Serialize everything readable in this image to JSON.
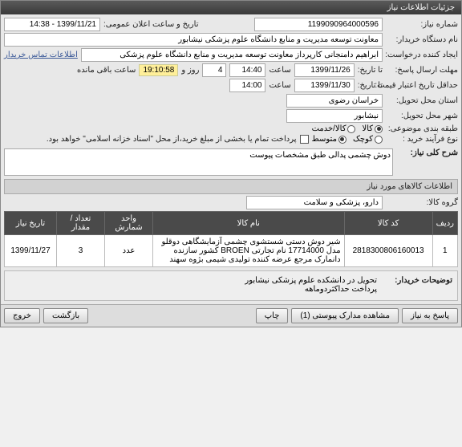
{
  "header": {
    "title": "جزئیات اطلاعات نیاز"
  },
  "fields": {
    "need_no_label": "شماره نیاز:",
    "need_no": "1199090964000596",
    "announce_label": "تاریخ و ساعت اعلان عمومی:",
    "announce": "1399/11/21 - 14:38",
    "buyer_org_label": "نام دستگاه خریدار:",
    "buyer_org": "معاونت توسعه مدیریت و منابع دانشگاه علوم پزشکی نیشابور",
    "creator_label": "ایجاد کننده درخواست:",
    "creator": "ابراهیم دامنجانی   کارپرداز معاونت توسعه مدیریت و منابع دانشگاه علوم پزشکی",
    "contact_link": "اطلاعات تماس خریدار",
    "deadline_label": "مهلت ارسال پاسخ:",
    "deadline_to": "تا تاریخ:",
    "deadline_date": "1399/11/26",
    "deadline_time_label": "ساعت",
    "deadline_time": "14:40",
    "remain_days": "4",
    "remain_days_label": "روز و",
    "remain_time": "19:10:58",
    "remain_suffix": "ساعت باقی مانده",
    "valid_label": "حداقل تاریخ اعتبار قیمت:",
    "valid_to": "تا تاریخ:",
    "valid_date": "1399/11/30",
    "valid_time_label": "ساعت",
    "valid_time": "14:00",
    "province_label": "استان محل تحویل:",
    "province": "خراسان رضوی",
    "city_label": "شهر محل تحویل:",
    "city": "نیشابور",
    "category_label": "طبقه بندی موضوعی:",
    "cat_goods": "کالا",
    "cat_service": "کالا/خدمت",
    "process_label": "نوع فرآیند خرید :",
    "proc_small": "کوچک",
    "proc_medium": "متوسط",
    "payment_note": "پرداخت تمام یا بخشی از مبلغ خرید،از محل \"اسناد خزانه اسلامی\" خواهد بود.",
    "desc_label": "شرح کلی نیاز:",
    "desc_value": "دوش چشمی پدالی طبق مشخصات پیوست"
  },
  "items_section": {
    "title": "اطلاعات کالاهای مورد نیاز",
    "group_label": "گروه کالا:",
    "group_value": "دارو، پزشکی و سلامت",
    "columns": {
      "row": "ردیف",
      "code": "کد کالا",
      "name": "نام کالا",
      "unit": "واحد شمارش",
      "qty": "تعداد / مقدار",
      "date": "تاریخ نیاز"
    },
    "rows": [
      {
        "row": "1",
        "code": "2818300806160013",
        "name": "شیر دوش دستی شستشوی چشمی آزمایشگاهی دوقلو مدل 17714000 نام تجارتی BROEN کشور سازنده دانمارک مرجع عرضه کننده تولیدی شیمی بژوه سهند",
        "unit": "عدد",
        "qty": "3",
        "date": "1399/11/27"
      }
    ]
  },
  "buyer_notes": {
    "label": "توضیحات خریدار:",
    "text": "تحویل در دانشکده علوم پزشکی نیشابور\nپرداخت حداکثردوماهه"
  },
  "buttons": {
    "reply": "پاسخ به نیاز",
    "attachments": "مشاهده مدارک پیوستی (1)",
    "print": "چاپ",
    "back": "بازگشت",
    "exit": "خروج"
  }
}
